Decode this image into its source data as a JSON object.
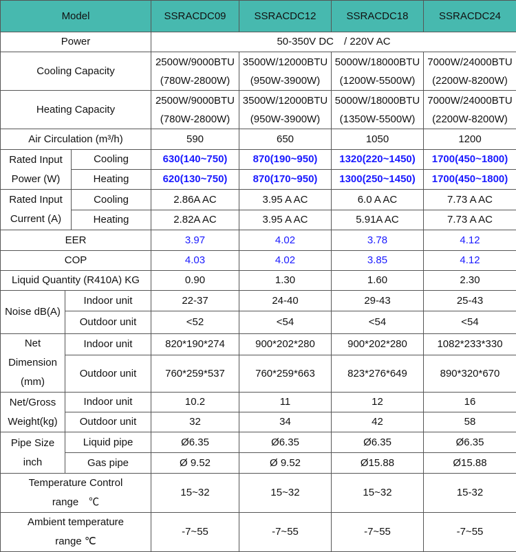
{
  "header": {
    "label": "Model",
    "models": [
      "SSRACDC09",
      "SSRACDC12",
      "SSRACDC18",
      "SSRACDC24"
    ]
  },
  "power": {
    "label": "Power",
    "value": "50-350V DC　/ 220V AC"
  },
  "cooling_capacity": {
    "label": "Cooling Capacity",
    "values": [
      [
        "2500W/9000BTU",
        "(780W-2800W)"
      ],
      [
        "3500W/12000BTU",
        "(950W-3900W)"
      ],
      [
        "5000W/18000BTU",
        "(1200W-5500W)"
      ],
      [
        "7000W/24000BTU",
        "(2200W-8200W)"
      ]
    ]
  },
  "heating_capacity": {
    "label": "Heating Capacity",
    "values": [
      [
        "2500W/9000BTU",
        "(780W-2800W)"
      ],
      [
        "3500W/12000BTU",
        "(950W-3900W)"
      ],
      [
        "5000W/18000BTU",
        "(1350W-5500W)"
      ],
      [
        "7000W/24000BTU",
        "(2200W-8200W)"
      ]
    ]
  },
  "air_circulation": {
    "label": "Air Circulation (m³/h)",
    "values": [
      "590",
      "650",
      "1050",
      "1200"
    ]
  },
  "rated_power": {
    "label": [
      "Rated Input",
      "Power (W)"
    ],
    "cooling_label": "Cooling",
    "heating_label": "Heating",
    "cooling": [
      "630(140~750)",
      "870(190~950)",
      "1320(220~1450)",
      "1700(450~1800)"
    ],
    "heating": [
      "620(130~750)",
      "870(170~950)",
      "1300(250~1450)",
      "1700(450~1800)"
    ]
  },
  "rated_current": {
    "label": [
      "Rated Input",
      "Current (A)"
    ],
    "cooling_label": "Cooling",
    "heating_label": "Heating",
    "cooling": [
      "2.86A AC",
      "3.95 A AC",
      "6.0 A AC",
      "7.73 A AC"
    ],
    "heating": [
      "2.82A AC",
      "3.95 A AC",
      "5.91A AC",
      "7.73 A AC"
    ]
  },
  "eer": {
    "label": "EER",
    "values": [
      "3.97",
      "4.02",
      "3.78",
      "4.12"
    ]
  },
  "cop": {
    "label": "COP",
    "values": [
      "4.03",
      "4.02",
      "3.85",
      "4.12"
    ]
  },
  "liquid_quantity": {
    "label": "Liquid Quantity (R410A) KG",
    "values": [
      "0.90",
      "1.30",
      "1.60",
      "2.30"
    ]
  },
  "noise": {
    "label": "Noise dB(A)",
    "indoor_label": "Indoor unit",
    "outdoor_label": "Outdoor unit",
    "indoor": [
      "22-37",
      "24-40",
      "29-43",
      "25-43"
    ],
    "outdoor": [
      "<52",
      "<54",
      "<54",
      "<54"
    ]
  },
  "dimension": {
    "label": [
      "Net",
      "Dimension",
      "(mm)"
    ],
    "indoor_label": "Indoor unit",
    "outdoor_label": "Outdoor unit",
    "indoor": [
      "820*190*274",
      "900*202*280",
      "900*202*280",
      "1082*233*330"
    ],
    "outdoor": [
      "760*259*537",
      "760*259*663",
      "823*276*649",
      "890*320*670"
    ]
  },
  "weight": {
    "label": [
      "Net/Gross",
      "Weight(kg)"
    ],
    "indoor_label": "Indoor unit",
    "outdoor_label": "Outdoor unit",
    "indoor": [
      "10.2",
      "11",
      "12",
      "16"
    ],
    "outdoor": [
      "32",
      "34",
      "42",
      "58"
    ]
  },
  "pipe": {
    "label": [
      "Pipe Size",
      "inch"
    ],
    "liquid_label": "Liquid pipe",
    "gas_label": "Gas pipe",
    "liquid": [
      "Ø6.35",
      "Ø6.35",
      "Ø6.35",
      "Ø6.35"
    ],
    "gas": [
      "Ø 9.52",
      "Ø 9.52",
      "Ø15.88",
      "Ø15.88"
    ]
  },
  "temp_control": {
    "label": [
      "Temperature Control",
      "range　℃"
    ],
    "values": [
      "15~32",
      "15~32",
      "15~32",
      "15-32"
    ]
  },
  "ambient_temp": {
    "label": [
      "Ambient temperature",
      "range ℃"
    ],
    "values": [
      "-7~55",
      "-7~55",
      "-7~55",
      "-7~55"
    ]
  },
  "colors": {
    "header_bg": "#47b9af",
    "highlight_text": "#1a1aff"
  }
}
